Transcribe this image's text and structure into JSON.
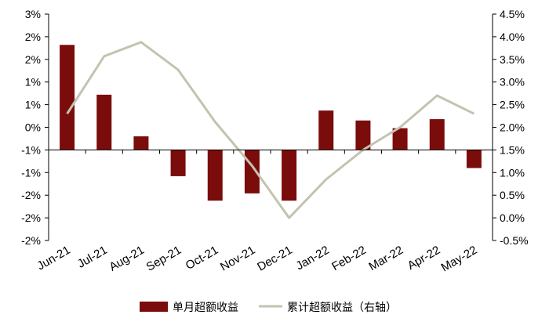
{
  "chart_data": {
    "type": "bar",
    "title": "",
    "xlabel": "",
    "ylabel": "",
    "categories": [
      "Jun-21",
      "Jul-21",
      "Aug-21",
      "Sep-21",
      "Oct-21",
      "Nov-21",
      "Dec-21",
      "Jan-22",
      "Feb-22",
      "Mar-22",
      "Apr-22",
      "May-22"
    ],
    "left_axis": {
      "min": -2,
      "max": 3,
      "step": 0.5,
      "tick_labels": [
        "3%",
        "2%",
        "2%",
        "1%",
        "1%",
        "0%",
        "-1%",
        "-1%",
        "-2%",
        "-2%",
        "-2%"
      ]
    },
    "right_axis": {
      "min": -0.5,
      "max": 4.5,
      "step": 0.5,
      "tick_labels": [
        "4.5%",
        "4.0%",
        "3.5%",
        "3.0%",
        "2.5%",
        "2.0%",
        "1.5%",
        "1.0%",
        "0.5%",
        "0.0%",
        "-0.5%"
      ]
    },
    "series": [
      {
        "name": "单月超额收益",
        "kind": "bar",
        "axis": "left",
        "color": "#7b0c0c",
        "values": [
          2.32,
          1.22,
          0.3,
          -0.58,
          -1.12,
          -0.96,
          -1.12,
          0.87,
          0.65,
          0.48,
          0.68,
          -0.4
        ]
      },
      {
        "name": "累计超额收益（右轴）",
        "kind": "line",
        "axis": "right",
        "color": "#c3c3b1",
        "values": [
          2.3,
          3.57,
          3.88,
          3.27,
          2.12,
          1.15,
          0.0,
          0.85,
          1.5,
          2.0,
          2.7,
          2.3
        ]
      }
    ],
    "legend_position": "bottom",
    "grid": false
  }
}
